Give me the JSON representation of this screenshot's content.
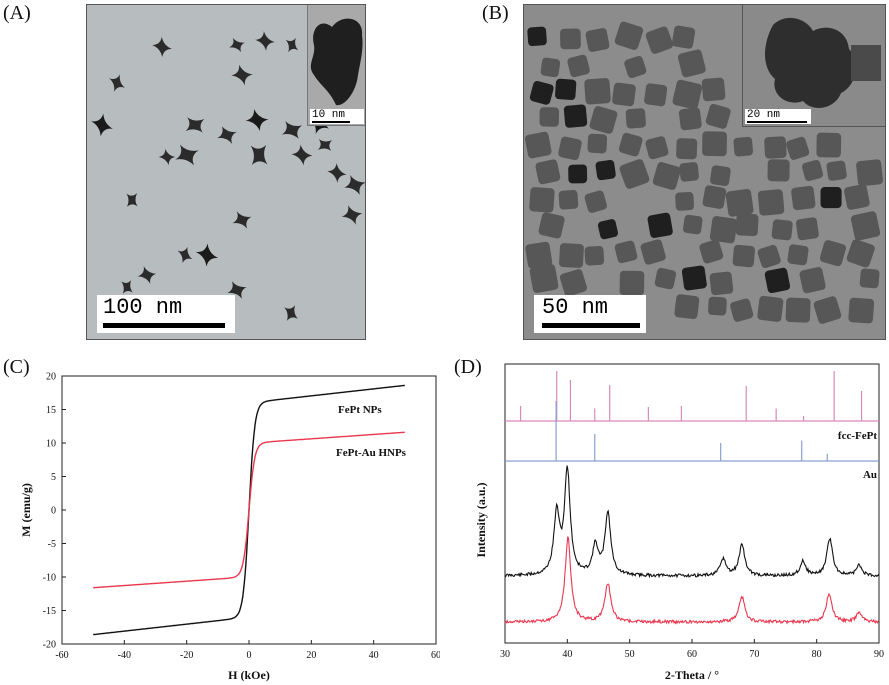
{
  "panels": {
    "a": {
      "label": "(A)",
      "scale_bar": "100 nm",
      "inset_scale_bar": "10 nm"
    },
    "b": {
      "label": "(B)",
      "scale_bar": "50 nm",
      "inset_scale_bar": "20 nm"
    },
    "c": {
      "label": "(C)"
    },
    "d": {
      "label": "(D)"
    }
  },
  "chart_data": [
    {
      "type": "line",
      "panel": "C",
      "xlabel": "H (kOe)",
      "ylabel": "M (emu/g)",
      "xlim": [
        -60,
        60
      ],
      "ylim": [
        -20,
        20
      ],
      "xticks": [
        -60,
        -40,
        -20,
        0,
        20,
        40,
        60
      ],
      "yticks": [
        20,
        15,
        10,
        5,
        0,
        -5,
        -10,
        -15,
        -20
      ],
      "grid": false,
      "series": [
        {
          "name": "FePt NPs",
          "color": "#111111",
          "ms": 18.6,
          "k": 0.55,
          "chi": 0.045,
          "x": [
            -50,
            -30,
            -10,
            -5,
            -2,
            0,
            2,
            5,
            10,
            30,
            50
          ],
          "y": [
            -18.6,
            -17.7,
            -16.0,
            -14.5,
            -10.5,
            0,
            10.5,
            14.5,
            16.0,
            17.7,
            18.6
          ]
        },
        {
          "name": "FePt-Au HNPs",
          "color": "#e8384f",
          "ms": 11.6,
          "k": 0.55,
          "chi": 0.03,
          "x": [
            -50,
            -30,
            -10,
            -5,
            -2,
            0,
            2,
            5,
            10,
            30,
            50
          ],
          "y": [
            -11.6,
            -11.0,
            -10.0,
            -9.0,
            -6.5,
            0,
            6.5,
            9.0,
            10.0,
            11.0,
            11.6
          ]
        }
      ]
    },
    {
      "type": "line",
      "panel": "D",
      "xlabel": "2-Theta / °",
      "ylabel": "Intensity (a.u.)",
      "xlim": [
        30,
        90
      ],
      "xticks": [
        30,
        40,
        50,
        60,
        70,
        80,
        90
      ],
      "grid": false,
      "references": [
        {
          "name": "fcc-FePt",
          "color": "#d98ab8",
          "peaks": [
            [
              32.5,
              0.3
            ],
            [
              38.3,
              1.0
            ],
            [
              40.5,
              0.82
            ],
            [
              44.4,
              0.25
            ],
            [
              46.8,
              0.72
            ],
            [
              53.0,
              0.28
            ],
            [
              58.3,
              0.3
            ],
            [
              68.7,
              0.7
            ],
            [
              73.5,
              0.25
            ],
            [
              77.9,
              0.1
            ],
            [
              82.8,
              1.0
            ],
            [
              87.2,
              0.6
            ]
          ]
        },
        {
          "name": "Au",
          "color": "#8aa0cf",
          "peaks": [
            [
              38.2,
              1.0
            ],
            [
              44.4,
              0.45
            ],
            [
              64.6,
              0.3
            ],
            [
              77.6,
              0.34
            ],
            [
              81.7,
              0.12
            ]
          ]
        }
      ],
      "series": [
        {
          "name": "",
          "color": "#111111",
          "peaks": [
            [
              38.3,
              0.58
            ],
            [
              40.0,
              1.0
            ],
            [
              44.5,
              0.28
            ],
            [
              46.5,
              0.6
            ],
            [
              65.0,
              0.16
            ],
            [
              68.0,
              0.3
            ],
            [
              77.8,
              0.14
            ],
            [
              82.1,
              0.36
            ],
            [
              86.8,
              0.1
            ]
          ]
        },
        {
          "name": "",
          "color": "#e8384f",
          "peaks": [
            [
              40.1,
              1.0
            ],
            [
              46.5,
              0.46
            ],
            [
              68.0,
              0.3
            ],
            [
              82.0,
              0.34
            ],
            [
              86.8,
              0.11
            ]
          ]
        }
      ]
    }
  ]
}
